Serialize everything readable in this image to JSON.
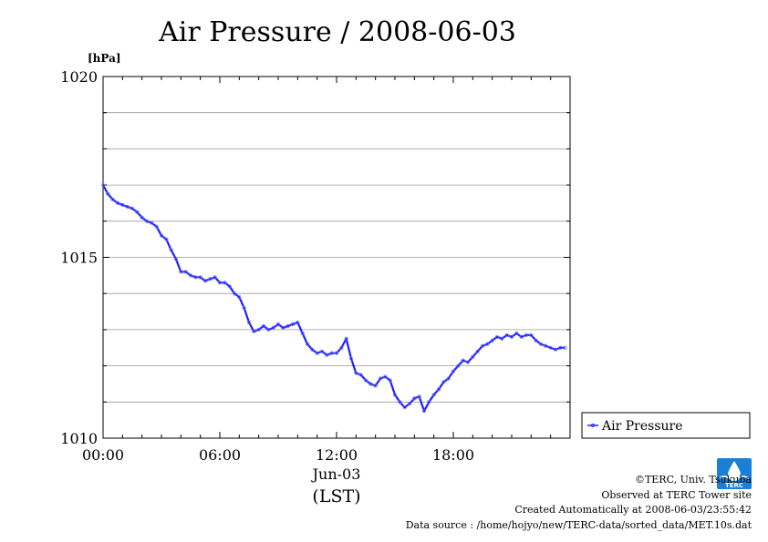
{
  "chart_data": {
    "type": "line",
    "title": "Air Pressure / 2008-06-03",
    "ylabel": "[hPa]",
    "ylim": [
      1010,
      1020
    ],
    "y_ticks": [
      "1010",
      "1015",
      "1020"
    ],
    "x_tick_labels": [
      "00:00",
      "06:00",
      "12:00",
      "18:00"
    ],
    "x_date_label": "Jun-03",
    "x_timezone_label": "(LST)",
    "xlim_hours": [
      0,
      24
    ],
    "grid": true,
    "legend_placement": "right-bottom",
    "series": [
      {
        "name": "Air Pressure",
        "color": "#1f1fff",
        "marker": "open-circle",
        "x": [
          0,
          0.25,
          0.5,
          0.75,
          1.0,
          1.25,
          1.5,
          1.75,
          2.0,
          2.25,
          2.5,
          2.75,
          3.0,
          3.25,
          3.5,
          3.75,
          4.0,
          4.25,
          4.5,
          4.75,
          5.0,
          5.25,
          5.5,
          5.75,
          6.0,
          6.25,
          6.5,
          6.75,
          7.0,
          7.25,
          7.5,
          7.75,
          8.0,
          8.25,
          8.5,
          8.75,
          9.0,
          9.25,
          9.5,
          9.75,
          10.0,
          10.25,
          10.5,
          10.75,
          11.0,
          11.25,
          11.5,
          11.75,
          12.0,
          12.25,
          12.5,
          12.75,
          13.0,
          13.25,
          13.5,
          13.75,
          14.0,
          14.25,
          14.5,
          14.75,
          15.0,
          15.25,
          15.5,
          15.75,
          16.0,
          16.25,
          16.5,
          16.75,
          17.0,
          17.25,
          17.5,
          17.75,
          18.0,
          18.25,
          18.5,
          18.75,
          19.0,
          19.25,
          19.5,
          19.75,
          20.0,
          20.25,
          20.5,
          20.75,
          21.0,
          21.25,
          21.5,
          21.75,
          22.0,
          22.25,
          22.5,
          22.75,
          23.0,
          23.25,
          23.5,
          23.75
        ],
        "values": [
          1017.0,
          1016.75,
          1016.6,
          1016.5,
          1016.45,
          1016.4,
          1016.35,
          1016.25,
          1016.1,
          1016.0,
          1015.95,
          1015.85,
          1015.6,
          1015.5,
          1015.2,
          1014.95,
          1014.6,
          1014.6,
          1014.5,
          1014.45,
          1014.45,
          1014.35,
          1014.4,
          1014.45,
          1014.3,
          1014.3,
          1014.2,
          1014.0,
          1013.9,
          1013.6,
          1013.2,
          1012.95,
          1013.0,
          1013.1,
          1013.0,
          1013.05,
          1013.15,
          1013.05,
          1013.1,
          1013.15,
          1013.2,
          1012.9,
          1012.6,
          1012.45,
          1012.35,
          1012.4,
          1012.3,
          1012.35,
          1012.35,
          1012.5,
          1012.75,
          1012.2,
          1011.8,
          1011.75,
          1011.6,
          1011.5,
          1011.45,
          1011.65,
          1011.7,
          1011.6,
          1011.2,
          1011.0,
          1010.85,
          1010.95,
          1011.1,
          1011.15,
          1010.75,
          1011.0,
          1011.2,
          1011.35,
          1011.55,
          1011.65,
          1011.85,
          1012.0,
          1012.15,
          1012.1,
          1012.25,
          1012.4,
          1012.55,
          1012.6,
          1012.7,
          1012.8,
          1012.75,
          1012.85,
          1012.8,
          1012.9,
          1012.8,
          1012.85,
          1012.85,
          1012.7,
          1012.6,
          1012.55,
          1012.5,
          1012.45,
          1012.5,
          1012.5
        ]
      }
    ]
  },
  "credits": {
    "copyright": "©TERC, Univ. Tsukuba",
    "site": "Observed at TERC Tower site",
    "created": "Created Automatically at 2008-06-03/23:55:42",
    "source": "Data source : /home/hojyo/new/TERC-data/sorted_data/MET.10s.dat"
  },
  "logo": {
    "text": "TERC",
    "color": "#1a7fd6"
  }
}
